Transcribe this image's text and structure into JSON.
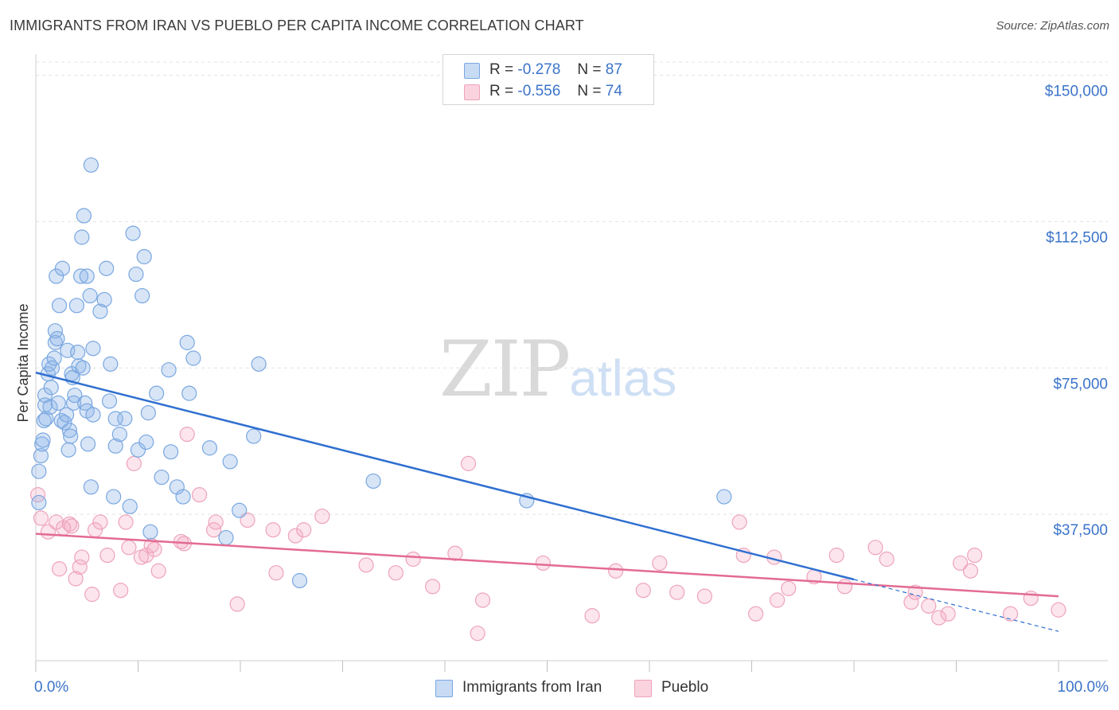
{
  "header": {
    "title": "IMMIGRANTS FROM IRAN VS PUEBLO PER CAPITA INCOME CORRELATION CHART",
    "source": "Source: ZipAtlas.com"
  },
  "watermark": {
    "zip": "ZIP",
    "atlas": "atlas"
  },
  "legend": {
    "rows": [
      {
        "r_label": "R =",
        "r_value": "-0.278",
        "n_label": "N =",
        "n_value": "87",
        "color": "#a9c7ee"
      },
      {
        "r_label": "R =",
        "r_value": "-0.556",
        "n_label": "N =",
        "n_value": "74",
        "color": "#f5b7c9"
      }
    ]
  },
  "bottom_legend": {
    "items": [
      {
        "label": "Immigrants from Iran",
        "color": "#a9c7ee"
      },
      {
        "label": "Pueblo",
        "color": "#f5b7c9"
      }
    ]
  },
  "colors": {
    "blue_fill": "rgba(140,180,232,0.35)",
    "blue_stroke": "#7aa7e0",
    "blue_line": "#2f6fd0",
    "pink_fill": "rgba(244,170,195,0.30)",
    "pink_stroke": "#eea3bb",
    "pink_line": "#e36b93",
    "grid": "#e4e4e4",
    "tick_label": "#3b74c9"
  },
  "chart_data": {
    "type": "scatter",
    "title": "IMMIGRANTS FROM IRAN VS PUEBLO PER CAPITA INCOME CORRELATION CHART",
    "xlabel": "",
    "ylabel": "Per Capita Income",
    "xlim": [
      0,
      100
    ],
    "ylim": [
      0,
      155000
    ],
    "x_tick_labels": [
      "0.0%",
      "100.0%"
    ],
    "y_ticks": [
      37500,
      75000,
      112500,
      150000
    ],
    "y_tick_labels": [
      "$37,500",
      "$75,000",
      "$112,500",
      "$150,000"
    ],
    "series": [
      {
        "name": "Immigrants from Iran",
        "r": -0.278,
        "n": 87,
        "trend": {
          "x": [
            0,
            80
          ],
          "y": [
            73800,
            20800
          ]
        },
        "trend_extension": {
          "x": [
            80,
            100
          ],
          "y": [
            20800,
            7500
          ]
        },
        "points": [
          [
            0.3,
            40500
          ],
          [
            0.3,
            48500
          ],
          [
            0.5,
            52500
          ],
          [
            0.6,
            55500
          ],
          [
            0.7,
            56500
          ],
          [
            0.8,
            61500
          ],
          [
            0.9,
            65500
          ],
          [
            0.9,
            68000
          ],
          [
            1.0,
            62000
          ],
          [
            1.2,
            73500
          ],
          [
            1.3,
            76000
          ],
          [
            1.4,
            65000
          ],
          [
            1.5,
            70000
          ],
          [
            1.6,
            75000
          ],
          [
            1.8,
            77500
          ],
          [
            1.9,
            81500
          ],
          [
            1.9,
            84500
          ],
          [
            2.0,
            98500
          ],
          [
            2.1,
            82500
          ],
          [
            2.2,
            66000
          ],
          [
            2.3,
            91000
          ],
          [
            2.5,
            61500
          ],
          [
            2.6,
            100500
          ],
          [
            2.8,
            61000
          ],
          [
            3.0,
            63000
          ],
          [
            3.1,
            79500
          ],
          [
            3.2,
            54000
          ],
          [
            3.3,
            59000
          ],
          [
            3.4,
            57500
          ],
          [
            3.5,
            73500
          ],
          [
            3.6,
            72500
          ],
          [
            3.7,
            66000
          ],
          [
            3.8,
            68000
          ],
          [
            4.0,
            91000
          ],
          [
            4.1,
            79000
          ],
          [
            4.2,
            75500
          ],
          [
            4.4,
            98500
          ],
          [
            4.5,
            108500
          ],
          [
            4.6,
            75000
          ],
          [
            4.7,
            114000
          ],
          [
            4.8,
            66000
          ],
          [
            5.0,
            64000
          ],
          [
            5.0,
            98500
          ],
          [
            5.1,
            55500
          ],
          [
            5.3,
            93500
          ],
          [
            5.4,
            44500
          ],
          [
            5.6,
            80000
          ],
          [
            5.6,
            63000
          ],
          [
            5.4,
            127000
          ],
          [
            6.3,
            89500
          ],
          [
            6.7,
            92500
          ],
          [
            6.9,
            100500
          ],
          [
            7.2,
            66500
          ],
          [
            7.3,
            76000
          ],
          [
            7.6,
            42000
          ],
          [
            7.8,
            62000
          ],
          [
            7.8,
            55000
          ],
          [
            8.2,
            58000
          ],
          [
            8.7,
            62000
          ],
          [
            9.2,
            39500
          ],
          [
            9.5,
            109500
          ],
          [
            9.8,
            99000
          ],
          [
            10.0,
            54000
          ],
          [
            10.4,
            93500
          ],
          [
            10.6,
            103500
          ],
          [
            10.8,
            56000
          ],
          [
            11.0,
            63500
          ],
          [
            11.2,
            33000
          ],
          [
            11.8,
            68500
          ],
          [
            12.3,
            47000
          ],
          [
            13.0,
            74500
          ],
          [
            13.2,
            53500
          ],
          [
            13.8,
            44500
          ],
          [
            14.4,
            42000
          ],
          [
            14.8,
            81500
          ],
          [
            15.0,
            68500
          ],
          [
            15.4,
            77500
          ],
          [
            17.0,
            54500
          ],
          [
            18.6,
            31500
          ],
          [
            19.0,
            51000
          ],
          [
            19.9,
            38500
          ],
          [
            21.3,
            57500
          ],
          [
            21.8,
            76000
          ],
          [
            25.8,
            20500
          ],
          [
            67.3,
            42000
          ],
          [
            48.0,
            41000
          ],
          [
            33.0,
            46000
          ]
        ]
      },
      {
        "name": "Pueblo",
        "r": -0.556,
        "n": 74,
        "trend": {
          "x": [
            0,
            100
          ],
          "y": [
            32500,
            16500
          ]
        },
        "points": [
          [
            0.2,
            42500
          ],
          [
            0.5,
            36500
          ],
          [
            1.2,
            33000
          ],
          [
            2.0,
            35500
          ],
          [
            2.3,
            23500
          ],
          [
            2.7,
            34000
          ],
          [
            3.3,
            35000
          ],
          [
            3.5,
            34500
          ],
          [
            3.9,
            21000
          ],
          [
            4.3,
            24000
          ],
          [
            4.5,
            26500
          ],
          [
            5.5,
            17000
          ],
          [
            5.8,
            33500
          ],
          [
            6.3,
            35500
          ],
          [
            7.0,
            27000
          ],
          [
            8.3,
            18000
          ],
          [
            8.8,
            35500
          ],
          [
            9.1,
            29000
          ],
          [
            9.6,
            50500
          ],
          [
            10.3,
            26500
          ],
          [
            10.8,
            27000
          ],
          [
            11.3,
            29500
          ],
          [
            11.6,
            28500
          ],
          [
            12.0,
            23000
          ],
          [
            14.2,
            30500
          ],
          [
            14.5,
            30000
          ],
          [
            14.8,
            58000
          ],
          [
            16.0,
            42500
          ],
          [
            17.4,
            33500
          ],
          [
            17.6,
            35500
          ],
          [
            19.7,
            14500
          ],
          [
            20.7,
            36000
          ],
          [
            23.2,
            33500
          ],
          [
            23.5,
            22500
          ],
          [
            25.4,
            32000
          ],
          [
            26.2,
            33500
          ],
          [
            28.0,
            37000
          ],
          [
            32.3,
            24500
          ],
          [
            35.2,
            22500
          ],
          [
            36.9,
            26000
          ],
          [
            38.8,
            19000
          ],
          [
            41.0,
            27500
          ],
          [
            42.3,
            50500
          ],
          [
            43.2,
            7000
          ],
          [
            43.7,
            15500
          ],
          [
            49.6,
            25000
          ],
          [
            54.4,
            11500
          ],
          [
            56.7,
            23000
          ],
          [
            59.4,
            18000
          ],
          [
            61.0,
            25000
          ],
          [
            62.7,
            17500
          ],
          [
            65.4,
            16500
          ],
          [
            68.8,
            35500
          ],
          [
            69.2,
            27000
          ],
          [
            70.4,
            12000
          ],
          [
            72.2,
            26500
          ],
          [
            72.5,
            15500
          ],
          [
            73.6,
            18500
          ],
          [
            76.1,
            21500
          ],
          [
            78.3,
            27000
          ],
          [
            79.1,
            19000
          ],
          [
            82.1,
            29000
          ],
          [
            83.2,
            26000
          ],
          [
            85.6,
            15000
          ],
          [
            86.0,
            17500
          ],
          [
            87.3,
            14000
          ],
          [
            88.3,
            11000
          ],
          [
            89.2,
            12000
          ],
          [
            90.4,
            25000
          ],
          [
            91.8,
            27000
          ],
          [
            91.4,
            23000
          ],
          [
            95.3,
            12000
          ],
          [
            97.3,
            16000
          ],
          [
            100.0,
            13000
          ]
        ]
      }
    ]
  }
}
